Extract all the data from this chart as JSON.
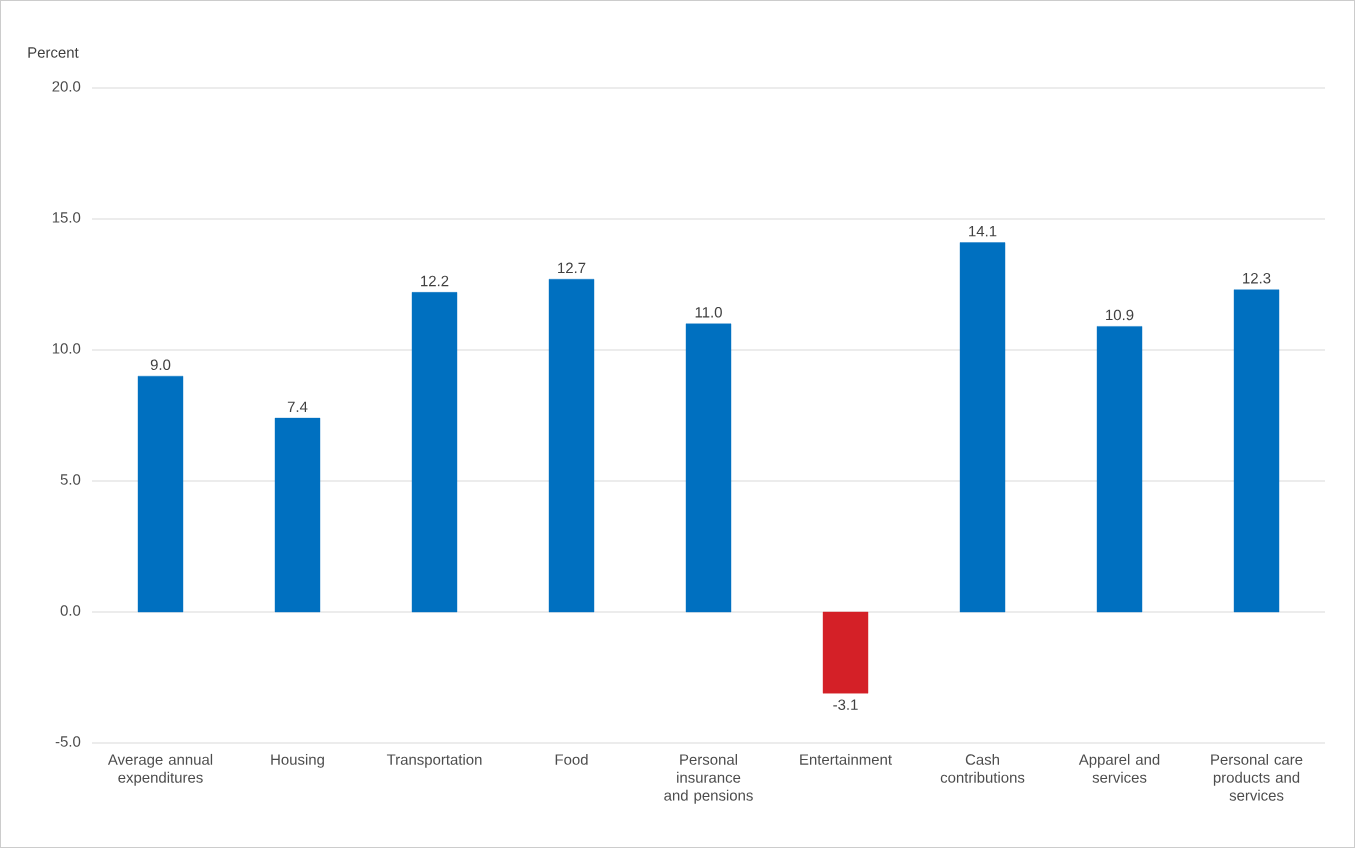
{
  "chart_data": {
    "type": "bar",
    "ylabel": "Percent",
    "categories": [
      "Average annual expenditures",
      "Housing",
      "Transportation",
      "Food",
      "Personal insurance and pensions",
      "Entertainment",
      "Cash contributions",
      "Apparel and services",
      "Personal care products and services"
    ],
    "values": [
      9.0,
      7.4,
      12.2,
      12.7,
      11.0,
      -3.1,
      14.1,
      10.9,
      12.3
    ],
    "colors": [
      "#0070c0",
      "#0070c0",
      "#0070c0",
      "#0070c0",
      "#0070c0",
      "#d42027",
      "#0070c0",
      "#0070c0",
      "#0070c0"
    ],
    "ylim": [
      -5,
      20
    ],
    "yticks": [
      {
        "value": -5,
        "label": "-5.0"
      },
      {
        "value": 0,
        "label": "0.0"
      },
      {
        "value": 5,
        "label": "5.0"
      },
      {
        "value": 10,
        "label": "10.0"
      },
      {
        "value": 15,
        "label": "15.0"
      },
      {
        "value": 20,
        "label": "20.0"
      }
    ],
    "value_labels": [
      "9.0",
      "7.4",
      "12.2",
      "12.7",
      "11.0",
      "-3.1",
      "14.1",
      "10.9",
      "12.3"
    ],
    "grid": "y"
  }
}
